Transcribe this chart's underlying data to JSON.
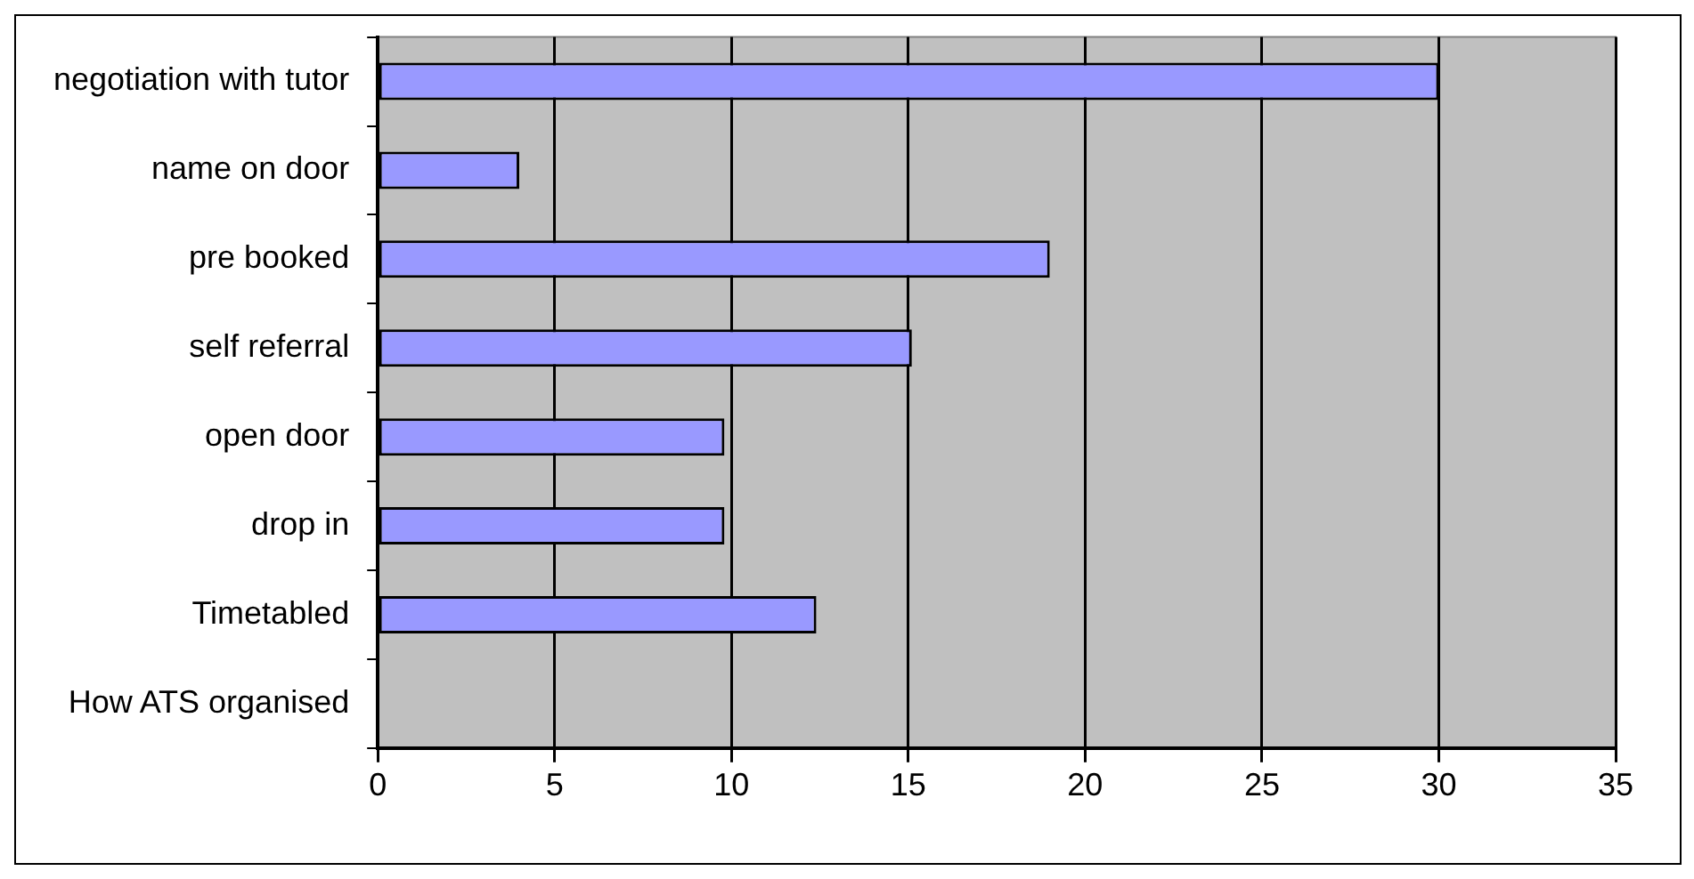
{
  "chart_data": {
    "type": "bar",
    "orientation": "horizontal",
    "categories": [
      "negotiation with tutor",
      "name on door",
      "pre booked",
      "self referral",
      "open door",
      "drop in",
      "Timetabled",
      "How ATS organised"
    ],
    "values": [
      30,
      4,
      19,
      15.1,
      9.8,
      9.8,
      12.4,
      null
    ],
    "color": "#9999ff",
    "xlim": [
      0,
      35
    ],
    "xticks": [
      0,
      5,
      10,
      15,
      20,
      25,
      30,
      35
    ],
    "grid": "x",
    "legend": false
  }
}
